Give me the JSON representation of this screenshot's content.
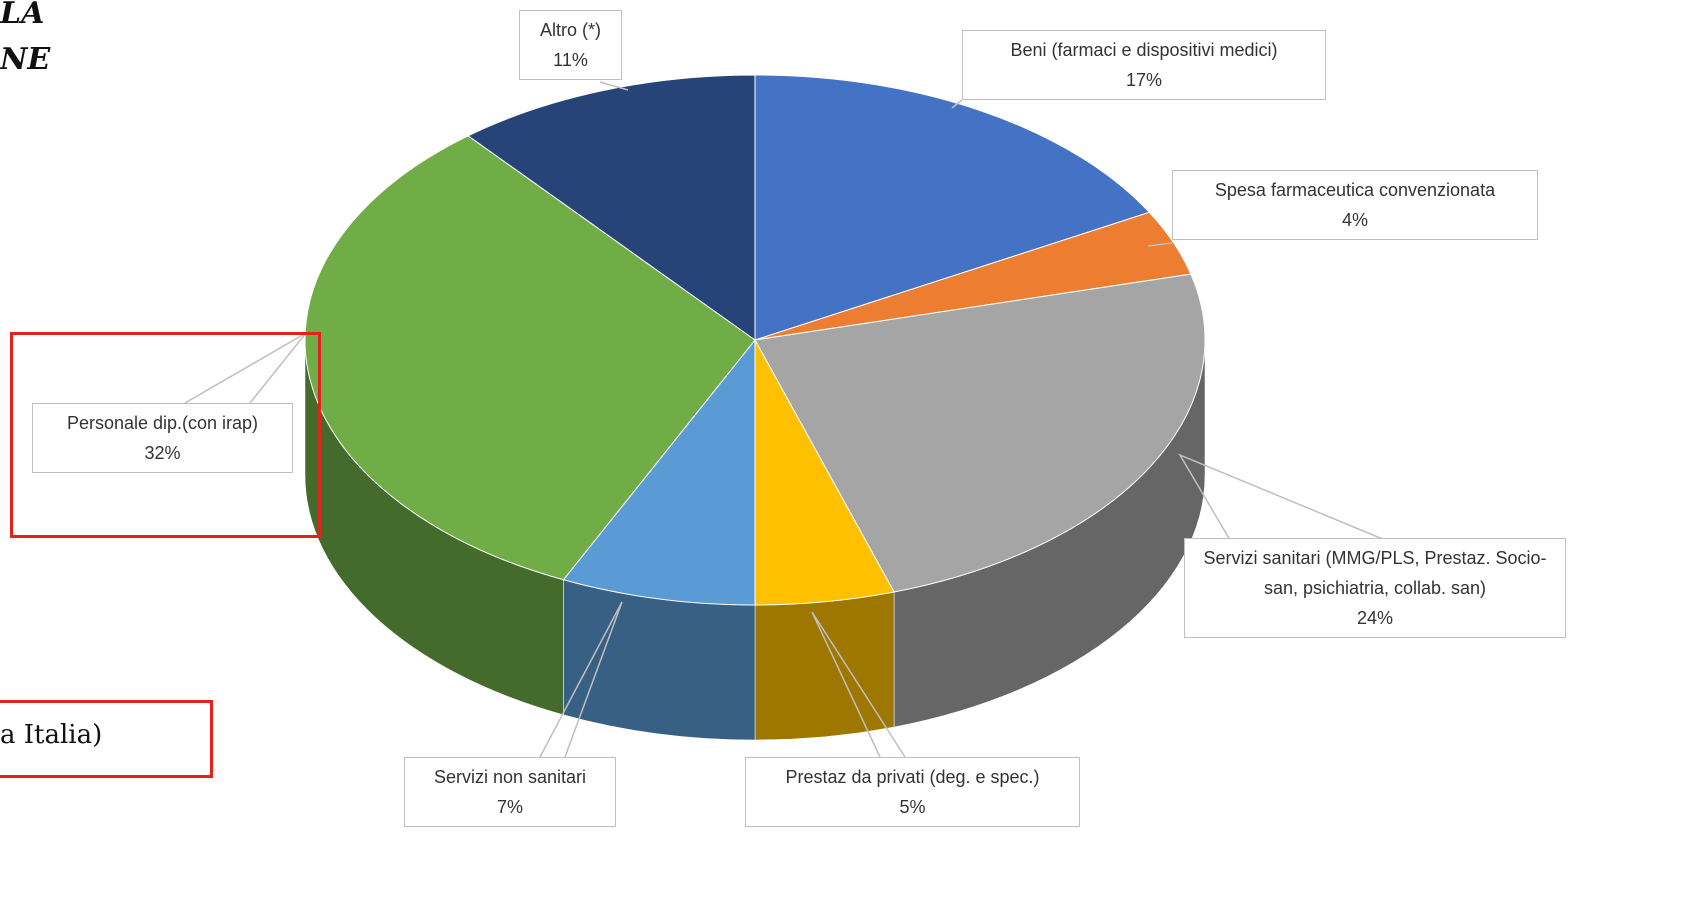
{
  "chart_data": {
    "type": "pie",
    "categories": [
      "Beni (farmaci e dispositivi medici)",
      "Spesa farmaceutica  convenzionata",
      "Servizi sanitari (MMG/PLS,  Prestaz. Socio-san, psichiatria, collab. san)",
      "Prestaz da privati (deg. e spec.)",
      "Servizi non sanitari",
      "Personale dip.(con irap)",
      "Altro (*)"
    ],
    "values": [
      17,
      4,
      24,
      5,
      7,
      32,
      11
    ],
    "value_labels": [
      "17%",
      "4%",
      "24%",
      "5%",
      "7%",
      "32%",
      "11%"
    ],
    "colors": [
      "#4472c4",
      "#ed7d31",
      "#a5a5a5",
      "#ffc000",
      "#5b9bd5",
      "#70ad47",
      "#264478"
    ],
    "annotations": [
      "LA",
      "NE",
      "a Italia)"
    ]
  }
}
